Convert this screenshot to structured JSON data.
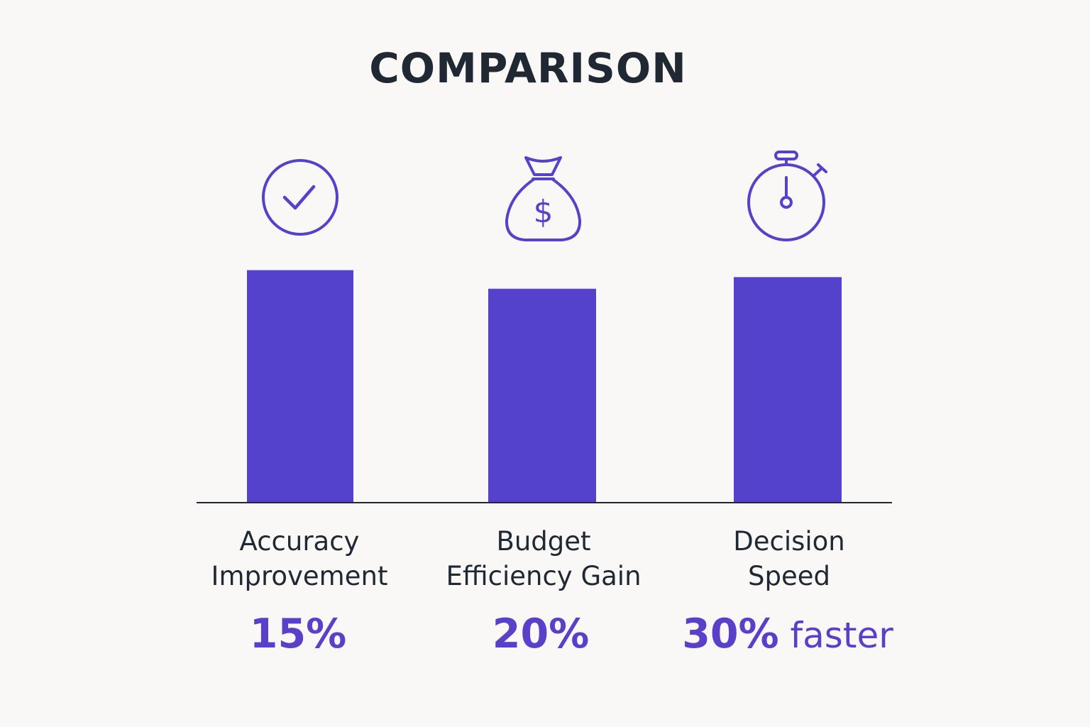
{
  "title": "COMPARISON",
  "colors": {
    "bar": "#5542cc",
    "value_text": "#5a3fc9",
    "text": "#1f2833",
    "baseline": "#1f2833",
    "background": "#faf8f6"
  },
  "icons": [
    "check-circle-icon",
    "money-bag-icon",
    "stopwatch-icon"
  ],
  "chart_data": {
    "type": "bar",
    "categories": [
      "Accuracy\nImprovement",
      "Budget\nEfficiency Gain",
      "Decision\nSpeed"
    ],
    "values": [
      100,
      92,
      97
    ],
    "value_labels": [
      {
        "number": "15%",
        "suffix": ""
      },
      {
        "number": "20%",
        "suffix": ""
      },
      {
        "number": "30%",
        "suffix": " faster"
      }
    ],
    "ylim": [
      0,
      120
    ],
    "grid": false,
    "legend": "none",
    "xlabel": "",
    "ylabel": ""
  }
}
